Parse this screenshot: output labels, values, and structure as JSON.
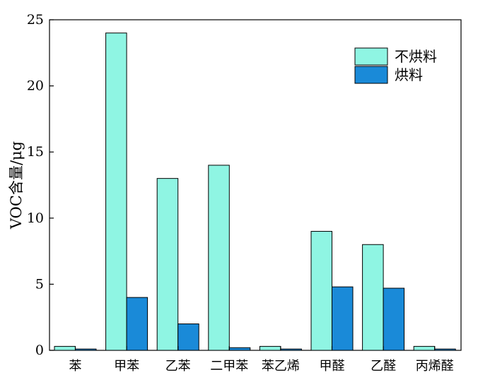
{
  "chart_data": {
    "type": "bar",
    "title": "",
    "xlabel": "",
    "ylabel": "VOC含量/μg",
    "ylim": [
      0,
      25
    ],
    "yticks": [
      0,
      5,
      10,
      15,
      20,
      25
    ],
    "grid": false,
    "legend": "top-right",
    "categories": [
      "苯",
      "甲苯",
      "乙苯",
      "二甲苯",
      "苯乙烯",
      "甲醛",
      "乙醛",
      "丙烯醛"
    ],
    "series": [
      {
        "name": "不烘料",
        "color": "#8ff5e3",
        "values": [
          0.3,
          24,
          13,
          14,
          0.3,
          9,
          8,
          0.3
        ]
      },
      {
        "name": "烘料",
        "color": "#1a8ad8",
        "values": [
          0.1,
          4,
          2,
          0.2,
          0.1,
          4.8,
          4.7,
          0.1
        ]
      }
    ]
  }
}
